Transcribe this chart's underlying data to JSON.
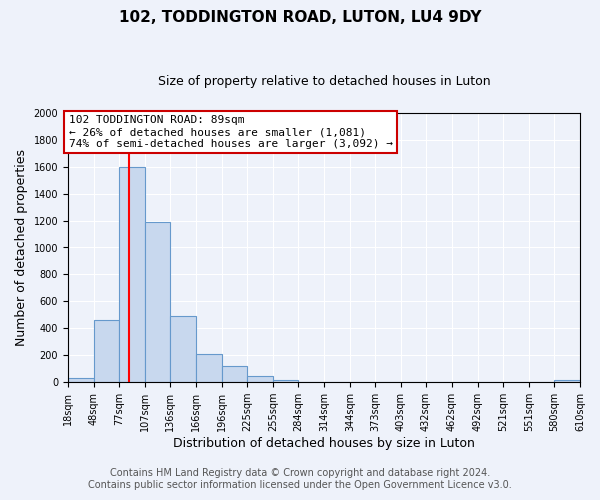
{
  "title": "102, TODDINGTON ROAD, LUTON, LU4 9DY",
  "subtitle": "Size of property relative to detached houses in Luton",
  "xlabel": "Distribution of detached houses by size in Luton",
  "ylabel": "Number of detached properties",
  "bar_color": "#c8d8ee",
  "bar_edge_color": "#6699cc",
  "bin_edges": [
    18,
    48,
    77,
    107,
    136,
    166,
    196,
    225,
    255,
    284,
    314,
    344,
    373,
    403,
    432,
    462,
    492,
    521,
    551,
    580,
    610
  ],
  "bin_labels": [
    "18sqm",
    "48sqm",
    "77sqm",
    "107sqm",
    "136sqm",
    "166sqm",
    "196sqm",
    "225sqm",
    "255sqm",
    "284sqm",
    "314sqm",
    "344sqm",
    "373sqm",
    "403sqm",
    "432sqm",
    "462sqm",
    "492sqm",
    "521sqm",
    "551sqm",
    "580sqm",
    "610sqm"
  ],
  "counts": [
    35,
    460,
    1600,
    1190,
    490,
    210,
    120,
    45,
    20,
    0,
    0,
    0,
    0,
    0,
    0,
    0,
    0,
    0,
    0,
    15,
    0
  ],
  "red_line_x": 89,
  "ylim": [
    0,
    2000
  ],
  "annot_line1": "102 TODDINGTON ROAD: 89sqm",
  "annot_line2": "← 26% of detached houses are smaller (1,081)",
  "annot_line3": "74% of semi-detached houses are larger (3,092) →",
  "annotation_box_edgecolor": "#cc0000",
  "footer1": "Contains HM Land Registry data © Crown copyright and database right 2024.",
  "footer2": "Contains public sector information licensed under the Open Government Licence v3.0.",
  "background_color": "#eef2fa",
  "grid_color": "#ffffff",
  "title_fontsize": 11,
  "subtitle_fontsize": 9,
  "axis_label_fontsize": 9,
  "tick_fontsize": 7,
  "annotation_fontsize": 8,
  "footer_fontsize": 7
}
